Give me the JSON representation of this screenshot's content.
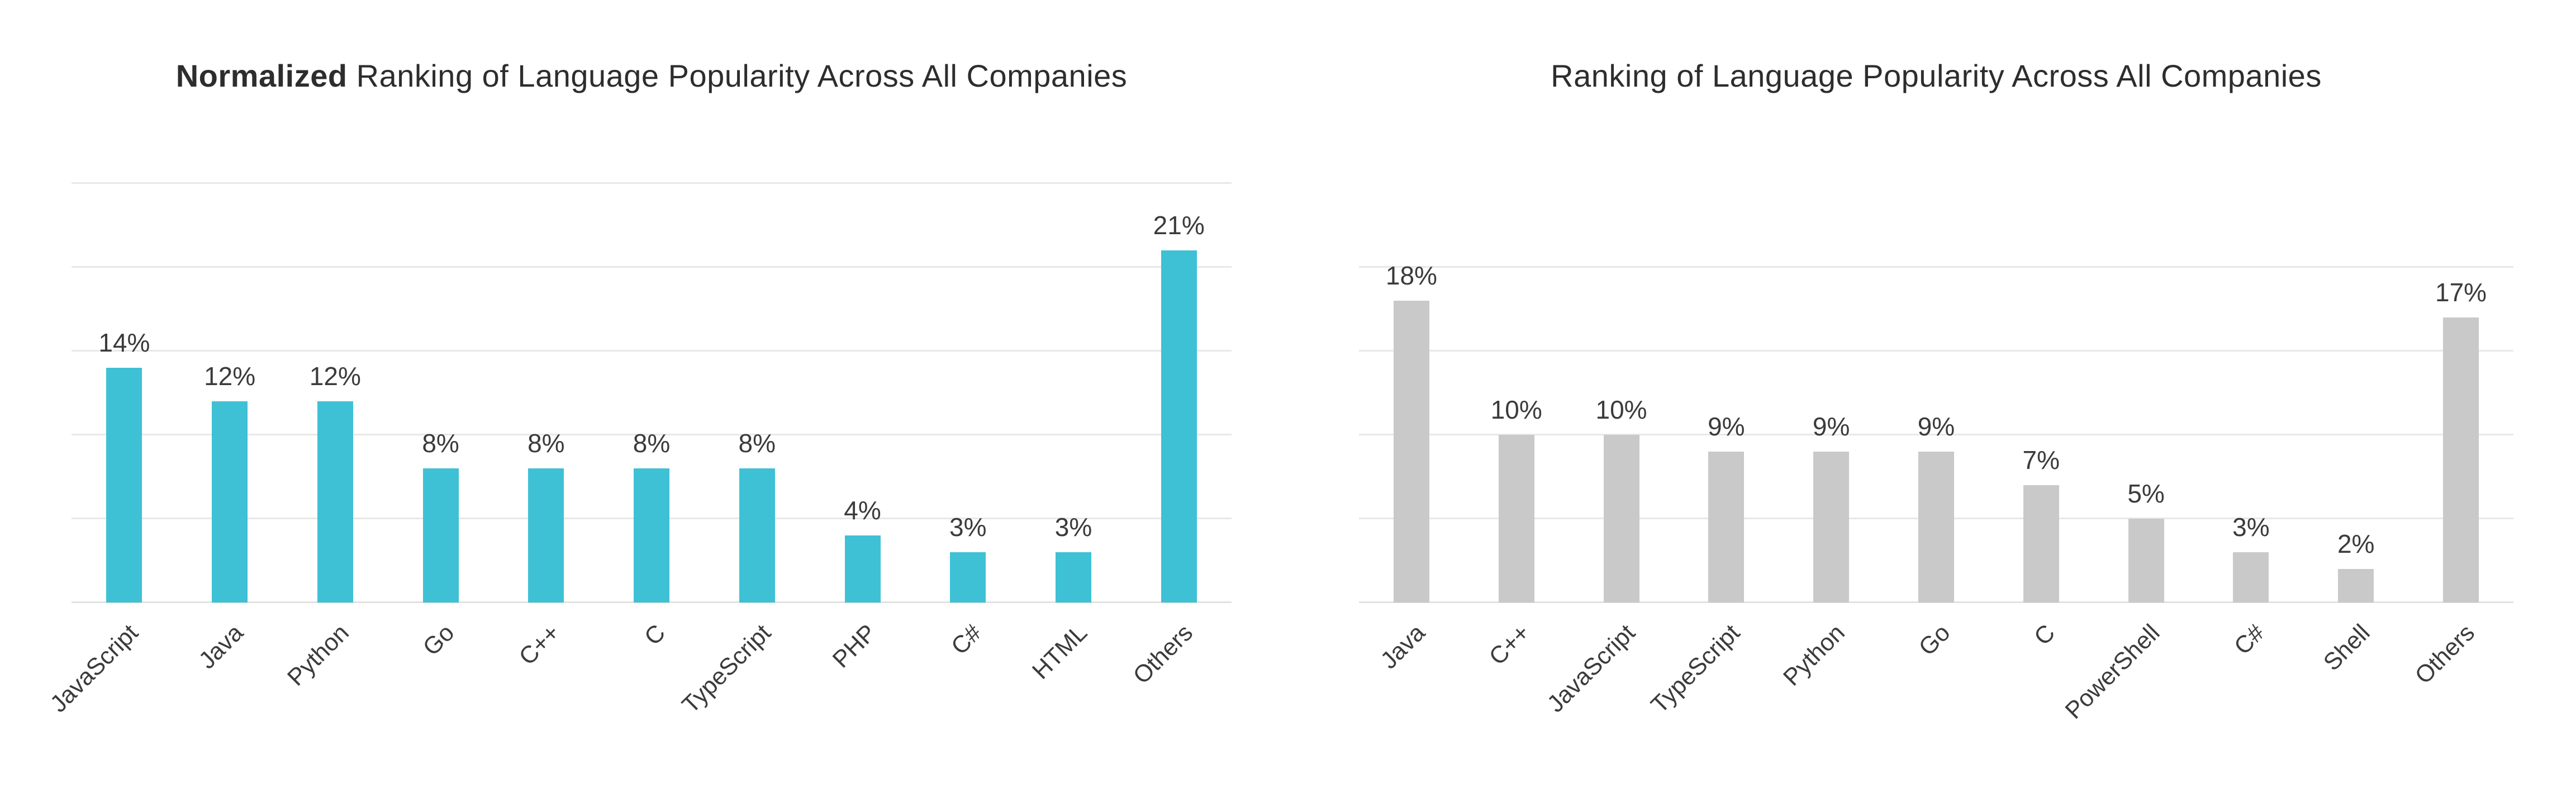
{
  "figure": {
    "background": "#ffffff",
    "text_color": "#3b3b3b",
    "title_color": "#2d2d2d",
    "gridline_color": "#e8e8e8"
  },
  "chart_data": [
    {
      "type": "bar",
      "title": "Normalized Ranking of Language Popularity Across All Companies",
      "title_bold_prefix": "Normalized",
      "title_rest": " Ranking of Language Popularity Across All Companies",
      "categories": [
        "JavaScript",
        "Java",
        "Python",
        "Go",
        "C++",
        "C",
        "TypeScript",
        "PHP",
        "C#",
        "HTML",
        "Others"
      ],
      "values": [
        14,
        12,
        12,
        8,
        8,
        8,
        8,
        4,
        3,
        3,
        21
      ],
      "value_labels": [
        "14%",
        "12%",
        "12%",
        "8%",
        "8%",
        "8%",
        "8%",
        "4%",
        "3%",
        "3%",
        "21%"
      ],
      "unit": "percent",
      "bar_color": "#3ec1d5",
      "ylim": [
        0,
        25
      ],
      "gridline_step": 5,
      "grid": true,
      "legend": "none",
      "xlabel": "",
      "ylabel": "",
      "x_tick_rotation_deg": 45
    },
    {
      "type": "bar",
      "title": "Ranking of Language Popularity Across All Companies",
      "title_bold_prefix": "",
      "title_rest": "Ranking of Language Popularity Across All Companies",
      "categories": [
        "Java",
        "C++",
        "JavaScript",
        "TypeScript",
        "Python",
        "Go",
        "C",
        "PowerShell",
        "C#",
        "Shell",
        "Others"
      ],
      "values": [
        18,
        10,
        10,
        9,
        9,
        9,
        7,
        5,
        3,
        2,
        17
      ],
      "value_labels": [
        "18%",
        "10%",
        "10%",
        "9%",
        "9%",
        "9%",
        "7%",
        "5%",
        "3%",
        "2%",
        "17%"
      ],
      "unit": "percent",
      "bar_color": "#c9c9c9",
      "ylim": [
        0,
        20
      ],
      "gridline_step": 5,
      "grid": true,
      "legend": "none",
      "xlabel": "",
      "ylabel": "",
      "x_tick_rotation_deg": 45
    }
  ]
}
